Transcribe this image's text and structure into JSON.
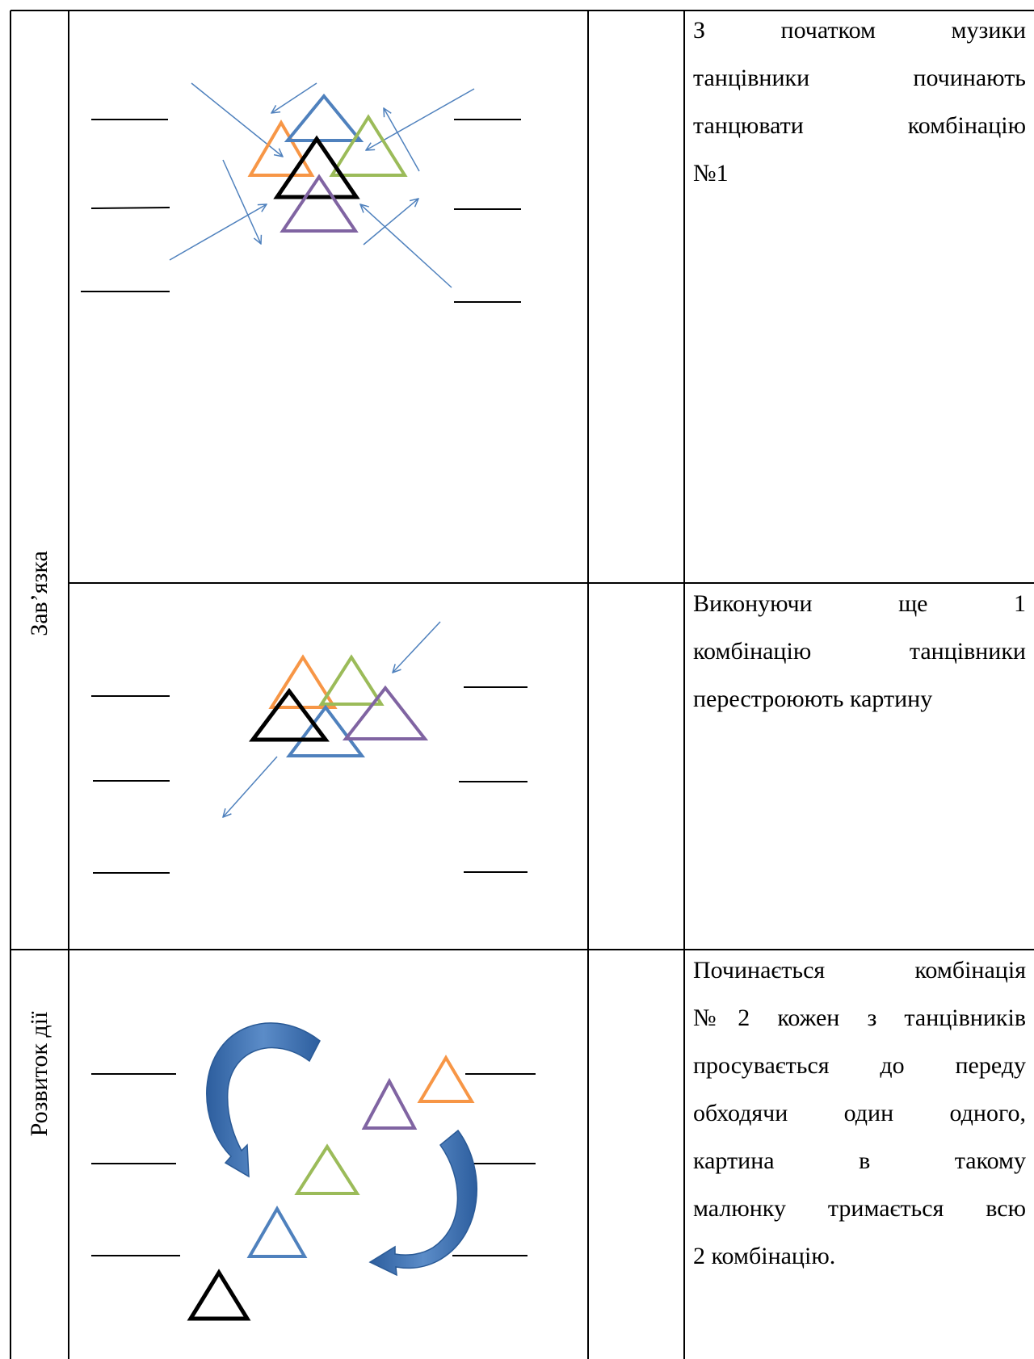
{
  "rows": [
    {
      "section_label": "Зав’язка",
      "description_lines": [
        "З початком музики",
        "танцівники починають",
        "танцювати комбінацію",
        "№1"
      ]
    },
    {
      "section_label": "",
      "description_lines": [
        "Виконуючи ще 1",
        "комбінацію танцівники",
        "перестроюють картину"
      ]
    },
    {
      "section_label": "Розвиток дії",
      "description_lines": [
        "Починається комбінація",
        "№2 кожен з танцівників",
        "просувається до переду",
        "обходячи один одного,",
        "картина в такому",
        "малюнку тримається всю",
        "2 комбінацію."
      ]
    }
  ],
  "colors": {
    "orange": "#F79646",
    "blue": "#4F81BD",
    "green": "#9BBB59",
    "purple": "#8064A2",
    "black": "#000000",
    "arrow": "#4F81BD",
    "curved_arrow": "#3F6FAF"
  }
}
